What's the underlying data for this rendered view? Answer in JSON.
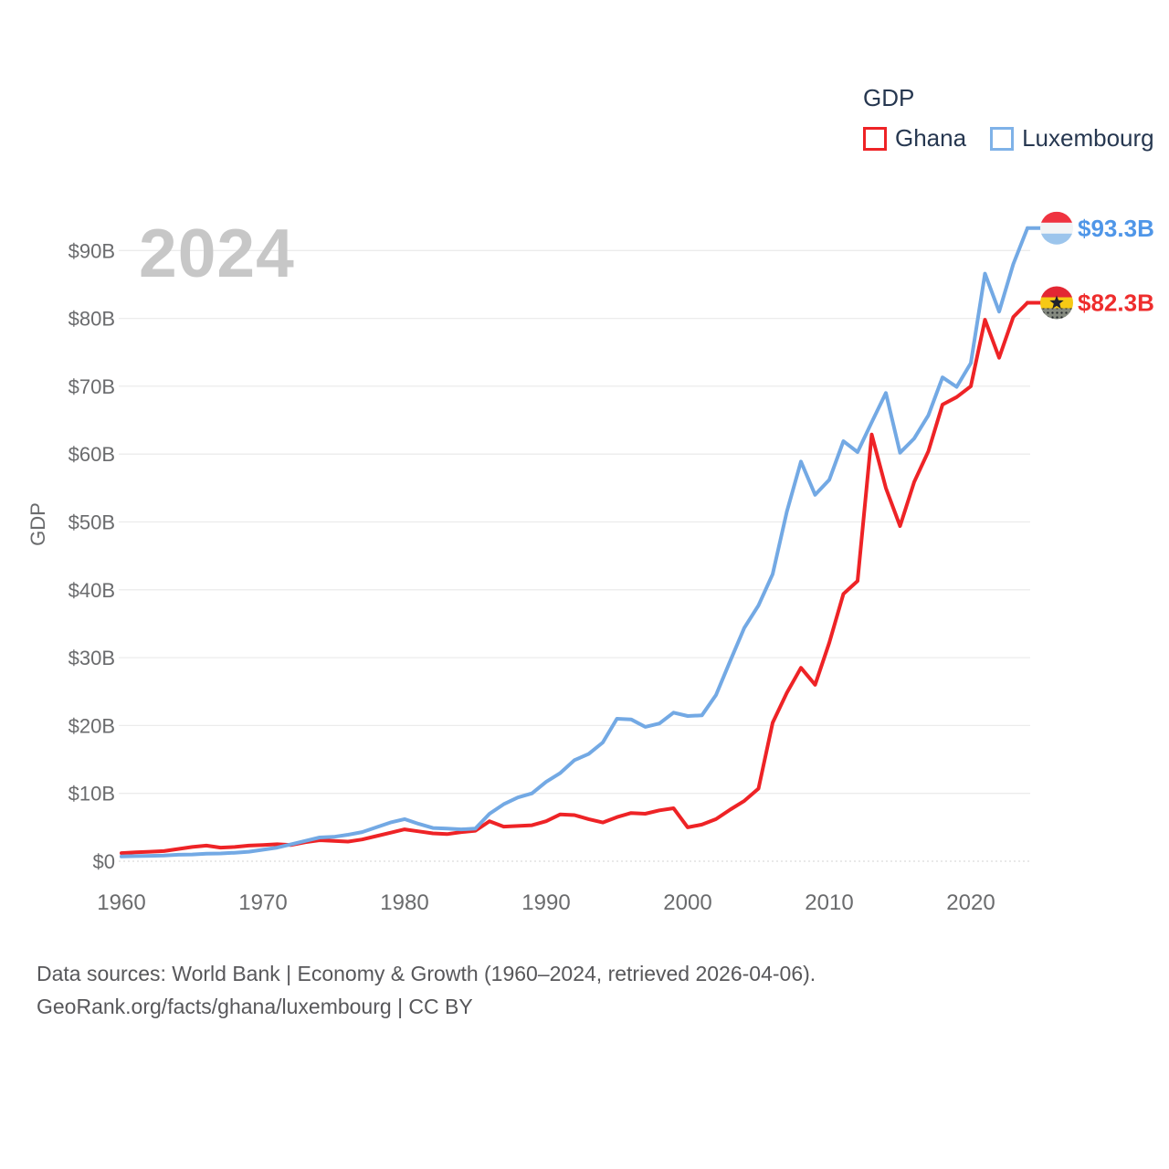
{
  "legend": {
    "title": "GDP",
    "items": [
      {
        "label": "Ghana",
        "color": "#ee2326"
      },
      {
        "label": "Luxembourg",
        "color": "#7fb2e8"
      }
    ]
  },
  "watermark": "2024",
  "chart_data": {
    "type": "line",
    "title": "GDP",
    "ylabel": "GDP",
    "xlabel": "",
    "grid": "horizontal",
    "legend_position": "top-right",
    "ylim": [
      0,
      97
    ],
    "x_ticks": [
      1960,
      1970,
      1980,
      1990,
      2000,
      2010,
      2020
    ],
    "y_ticks": [
      {
        "v": 0,
        "label": "$0"
      },
      {
        "v": 10,
        "label": "$10B"
      },
      {
        "v": 20,
        "label": "$20B"
      },
      {
        "v": 30,
        "label": "$30B"
      },
      {
        "v": 40,
        "label": "$40B"
      },
      {
        "v": 50,
        "label": "$50B"
      },
      {
        "v": 60,
        "label": "$60B"
      },
      {
        "v": 70,
        "label": "$70B"
      },
      {
        "v": 80,
        "label": "$80B"
      },
      {
        "v": 90,
        "label": "$90B"
      }
    ],
    "years": [
      1960,
      1961,
      1962,
      1963,
      1964,
      1965,
      1966,
      1967,
      1968,
      1969,
      1970,
      1971,
      1972,
      1973,
      1974,
      1975,
      1976,
      1977,
      1978,
      1979,
      1980,
      1981,
      1982,
      1983,
      1984,
      1985,
      1986,
      1987,
      1988,
      1989,
      1990,
      1991,
      1992,
      1993,
      1994,
      1995,
      1996,
      1997,
      1998,
      1999,
      2000,
      2001,
      2002,
      2003,
      2004,
      2005,
      2006,
      2007,
      2008,
      2009,
      2010,
      2011,
      2012,
      2013,
      2014,
      2015,
      2016,
      2017,
      2018,
      2019,
      2020,
      2021,
      2022,
      2023,
      2024
    ],
    "series": [
      {
        "name": "Ghana",
        "color": "#ee2326",
        "label_color": "#ee2d2d",
        "end_label": "$82.3B",
        "flag": "ghana",
        "values": [
          1.2,
          1.3,
          1.4,
          1.5,
          1.8,
          2.1,
          2.3,
          2.0,
          2.1,
          2.3,
          2.4,
          2.5,
          2.4,
          2.8,
          3.1,
          3.0,
          2.9,
          3.2,
          3.7,
          4.2,
          4.7,
          4.4,
          4.1,
          4.0,
          4.3,
          4.5,
          5.9,
          5.1,
          5.2,
          5.3,
          5.9,
          6.9,
          6.8,
          6.2,
          5.7,
          6.5,
          7.1,
          7.0,
          7.5,
          7.8,
          5.0,
          5.4,
          6.2,
          7.6,
          8.9,
          10.7,
          20.4,
          24.8,
          28.5,
          26.0,
          32.2,
          39.4,
          41.3,
          62.9,
          55.0,
          49.4,
          55.9,
          60.4,
          67.3,
          68.4,
          70.0,
          79.8,
          74.2,
          80.2,
          82.3
        ]
      },
      {
        "name": "Luxembourg",
        "color": "#73a9e4",
        "label_color": "#4f96e8",
        "end_label": "$93.3B",
        "flag": "luxembourg",
        "values": [
          0.7,
          0.75,
          0.8,
          0.85,
          0.95,
          1.0,
          1.1,
          1.15,
          1.25,
          1.4,
          1.7,
          2.0,
          2.5,
          3.0,
          3.5,
          3.6,
          3.9,
          4.3,
          5.0,
          5.7,
          6.2,
          5.5,
          4.9,
          4.8,
          4.7,
          4.8,
          7.0,
          8.4,
          9.4,
          10.0,
          11.7,
          13.0,
          14.9,
          15.8,
          17.5,
          21.0,
          20.9,
          19.8,
          20.3,
          21.9,
          21.4,
          21.5,
          24.5,
          29.5,
          34.4,
          37.7,
          42.3,
          51.5,
          58.9,
          54.0,
          56.2,
          61.9,
          60.3,
          64.7,
          69.0,
          60.2,
          62.3,
          65.7,
          71.3,
          69.9,
          73.4,
          86.6,
          81.0,
          88.0,
          93.3
        ]
      }
    ]
  },
  "flag_icons": {
    "ghana": {
      "stripes": [
        "#e32733",
        "#f6c915",
        "#858a80"
      ],
      "star": "#20232e",
      "dotted_bottom": true,
      "dot_color": "#23262b"
    },
    "luxembourg": {
      "stripes": [
        "#ef3340",
        "#f1f4f6",
        "#9cc5ec"
      ]
    }
  },
  "footer": {
    "line1": "Data sources: World Bank | Economy & Growth (1960–2024, retrieved 2026-04-06).",
    "line2": "GeoRank.org/facts/ghana/luxembourg | CC BY"
  }
}
